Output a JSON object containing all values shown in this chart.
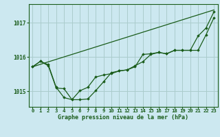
{
  "title": "Graphe pression niveau de la mer (hPa)",
  "bg_color": "#cce8f0",
  "grid_color": "#aacccc",
  "line_color": "#1a5c1a",
  "marker_color": "#1a5c1a",
  "xlim": [
    -0.5,
    23.5
  ],
  "ylim": [
    1014.55,
    1017.55
  ],
  "yticks": [
    1015,
    1016,
    1017
  ],
  "xticks": [
    0,
    1,
    2,
    3,
    4,
    5,
    6,
    7,
    8,
    9,
    10,
    11,
    12,
    13,
    14,
    15,
    16,
    17,
    18,
    19,
    20,
    21,
    22,
    23
  ],
  "series1_x": [
    0,
    1,
    2,
    3,
    4,
    5,
    6,
    7,
    8,
    9,
    10,
    11,
    12,
    13,
    14,
    15,
    16,
    17,
    18,
    19,
    20,
    21,
    22,
    23
  ],
  "series1_y": [
    1015.72,
    1015.88,
    1015.78,
    1015.12,
    1014.82,
    1014.76,
    1014.76,
    1014.78,
    1015.02,
    1015.28,
    1015.55,
    1015.6,
    1015.63,
    1015.75,
    1015.87,
    1016.08,
    1016.14,
    1016.1,
    1016.2,
    1016.2,
    1016.2,
    1016.62,
    1016.85,
    1017.32
  ],
  "series2_x": [
    0,
    1,
    2,
    3,
    4,
    5,
    6,
    7,
    8,
    9,
    10,
    11,
    12,
    13,
    14,
    15,
    16,
    17,
    18,
    19,
    20,
    21,
    22,
    23
  ],
  "series2_y": [
    1015.72,
    1015.88,
    1015.75,
    1015.1,
    1015.08,
    1014.76,
    1015.02,
    1015.12,
    1015.42,
    1015.48,
    1015.52,
    1015.6,
    1015.63,
    1015.72,
    1016.08,
    1016.1,
    1016.14,
    1016.1,
    1016.2,
    1016.2,
    1016.2,
    1016.2,
    1016.65,
    1017.15
  ],
  "series3_x": [
    0,
    23
  ],
  "series3_y": [
    1015.72,
    1017.38
  ]
}
